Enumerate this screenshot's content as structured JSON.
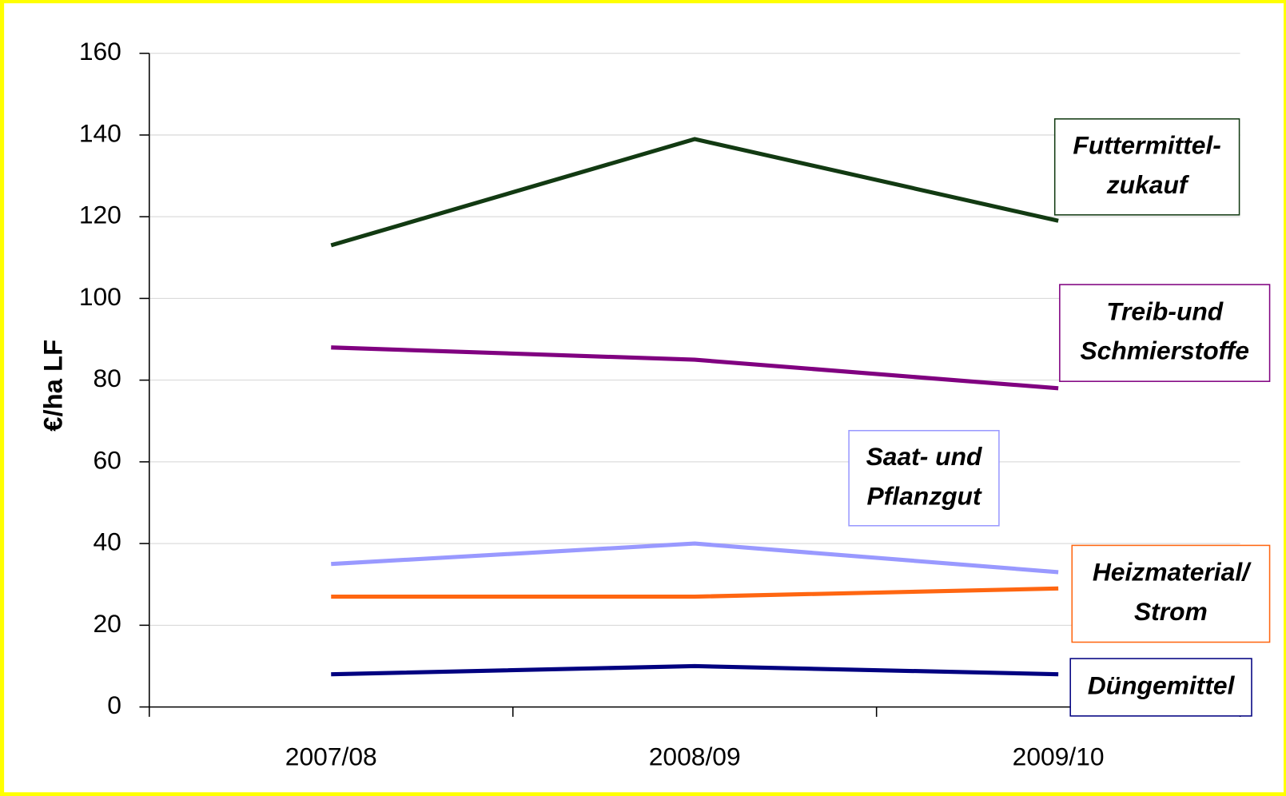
{
  "chart_data": {
    "type": "line",
    "ylabel": "€/ha LF",
    "categories": [
      "2007/08",
      "2008/09",
      "2009/10"
    ],
    "series": [
      {
        "name": [
          "Futtermittel-",
          "zukauf"
        ],
        "color": "#123a12",
        "values": [
          113,
          139,
          119
        ]
      },
      {
        "name": [
          "Treib-und",
          "Schmierstoffe"
        ],
        "color": "#800080",
        "values": [
          88,
          85,
          78
        ]
      },
      {
        "name": [
          "Saat- und",
          "Pflanzgut"
        ],
        "color": "#9999ff",
        "values": [
          35,
          40,
          33
        ]
      },
      {
        "name": [
          "Heizmaterial/",
          "Strom"
        ],
        "color": "#ff6611",
        "values": [
          27,
          27,
          29
        ]
      },
      {
        "name": [
          "Düngemittel"
        ],
        "color": "#000080",
        "values": [
          8,
          10,
          8
        ]
      }
    ],
    "ylim": [
      0,
      160
    ],
    "yticks": [
      0,
      20,
      40,
      60,
      80,
      100,
      120,
      140,
      160
    ],
    "grid": true
  }
}
